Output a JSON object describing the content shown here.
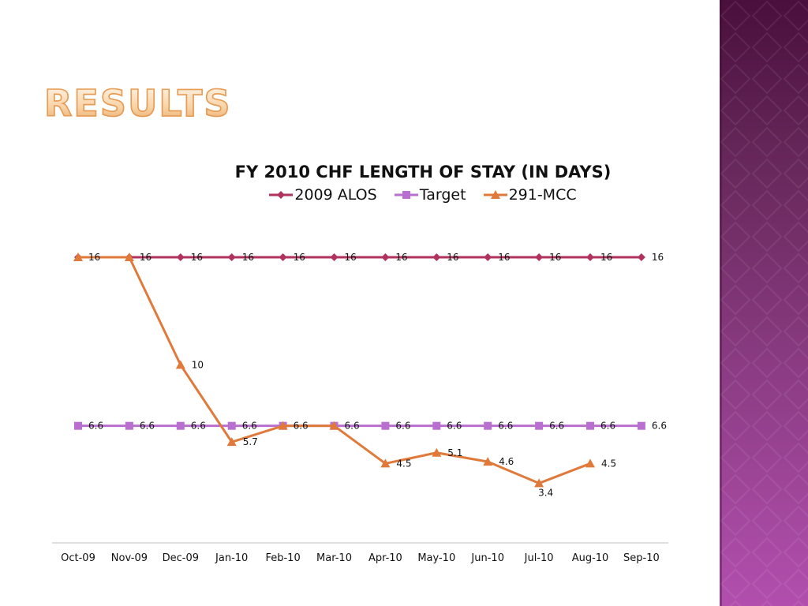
{
  "slide": {
    "title": "RESULTS"
  },
  "colors": {
    "alos": "#b0335f",
    "target": "#b96fcf",
    "mcc": "#e07a3a",
    "axis": "#bfbfbf",
    "side_panel": "#7a2f70"
  },
  "chart_data": {
    "type": "line",
    "title": "FY 2010 CHF LENGTH OF STAY (IN DAYS)",
    "xlabel": "",
    "ylabel": "",
    "ylim": [
      0,
      19
    ],
    "grid": false,
    "legend_position": "top",
    "categories": [
      "Oct-09",
      "Nov-09",
      "Dec-09",
      "Jan-10",
      "Feb-10",
      "Mar-10",
      "Apr-10",
      "May-10",
      "Jun-10",
      "Jul-10",
      "Aug-10",
      "Sep-10"
    ],
    "series": [
      {
        "name": "2009 ALOS",
        "marker": "diamond",
        "color": "#b0335f",
        "values": [
          16,
          16,
          16,
          16,
          16,
          16,
          16,
          16,
          16,
          16,
          16,
          16
        ],
        "labels": [
          "16",
          "16",
          "16",
          "16",
          "16",
          "16",
          "16",
          "16",
          "16",
          "16",
          "16",
          "16"
        ]
      },
      {
        "name": "Target",
        "marker": "square",
        "color": "#b96fcf",
        "values": [
          6.6,
          6.6,
          6.6,
          6.6,
          6.6,
          6.6,
          6.6,
          6.6,
          6.6,
          6.6,
          6.6,
          6.6
        ],
        "labels": [
          "6.6",
          "6.6",
          "6.6",
          "6.6",
          "6.6",
          "6.6",
          "6.6",
          "6.6",
          "6.6",
          "6.6",
          "6.6",
          "6.6"
        ]
      },
      {
        "name": "291-MCC",
        "marker": "triangle",
        "color": "#e07a3a",
        "values": [
          16,
          16,
          10,
          5.7,
          6.6,
          6.6,
          4.5,
          5.1,
          4.6,
          3.4,
          4.5,
          null
        ],
        "labels": [
          "16",
          "16",
          "10",
          "5.7",
          "6.6",
          "6.6",
          "4.5",
          "5.1",
          "4.6",
          "3.4",
          "4.5",
          null
        ]
      }
    ]
  }
}
